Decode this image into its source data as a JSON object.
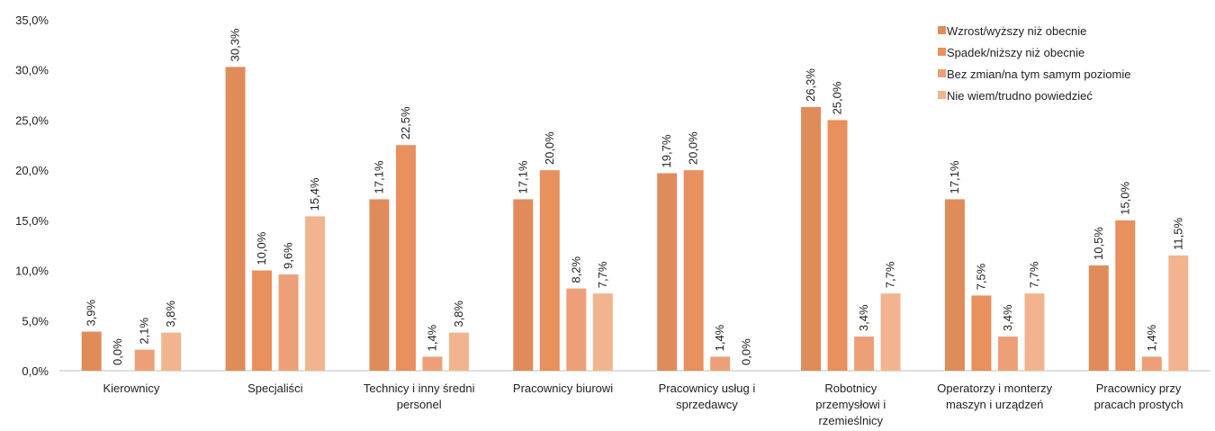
{
  "chart_data": {
    "type": "bar",
    "categories": [
      [
        "Kierownicy"
      ],
      [
        "Specjaliści"
      ],
      [
        "Technicy i inny średni",
        "personel"
      ],
      [
        "Pracownicy biurowi"
      ],
      [
        "Pracownicy usług i",
        "sprzedawcy"
      ],
      [
        "Robotnicy",
        "przemysłowi i",
        "rzemieślnicy"
      ],
      [
        "Operatorzy i monterzy",
        "maszyn i urządzeń"
      ],
      [
        "Pracownicy przy",
        "pracach prostych"
      ]
    ],
    "series": [
      {
        "name": "Wzrost/wyższy niż obecnie",
        "color": "#E08C5A",
        "values": [
          3.9,
          30.3,
          17.1,
          17.1,
          19.7,
          26.3,
          17.1,
          10.5
        ],
        "labels": [
          "3,9%",
          "30,3%",
          "17,1%",
          "17,1%",
          "19,7%",
          "26,3%",
          "17,1%",
          "10,5%"
        ]
      },
      {
        "name": "Spadek/niższy niż obecnie",
        "color": "#E8905E",
        "values": [
          0.0,
          10.0,
          22.5,
          20.0,
          20.0,
          25.0,
          7.5,
          15.0
        ],
        "labels": [
          "0,0%",
          "10,0%",
          "22,5%",
          "20,0%",
          "20,0%",
          "25,0%",
          "7,5%",
          "15,0%"
        ]
      },
      {
        "name": "Bez zmian/na tym samym poziomie",
        "color": "#EDA078",
        "values": [
          2.1,
          9.6,
          1.4,
          8.2,
          1.4,
          3.4,
          3.4,
          1.4
        ],
        "labels": [
          "2,1%",
          "9,6%",
          "1,4%",
          "8,2%",
          "1,4%",
          "3,4%",
          "3,4%",
          "1,4%"
        ]
      },
      {
        "name": "Nie wiem/trudno powiedzieć",
        "color": "#F2B48E",
        "values": [
          3.8,
          15.4,
          3.8,
          7.7,
          0.0,
          7.7,
          7.7,
          11.5
        ],
        "labels": [
          "3,8%",
          "15,4%",
          "3,8%",
          "7,7%",
          "0,0%",
          "7,7%",
          "7,7%",
          "11,5%"
        ]
      }
    ],
    "ylim": [
      0,
      35
    ],
    "yticks": [
      "0,0%",
      "5,0%",
      "10,0%",
      "15,0%",
      "20,0%",
      "25,0%",
      "30,0%",
      "35,0%"
    ],
    "grid": false,
    "legend_position": "top-right"
  }
}
